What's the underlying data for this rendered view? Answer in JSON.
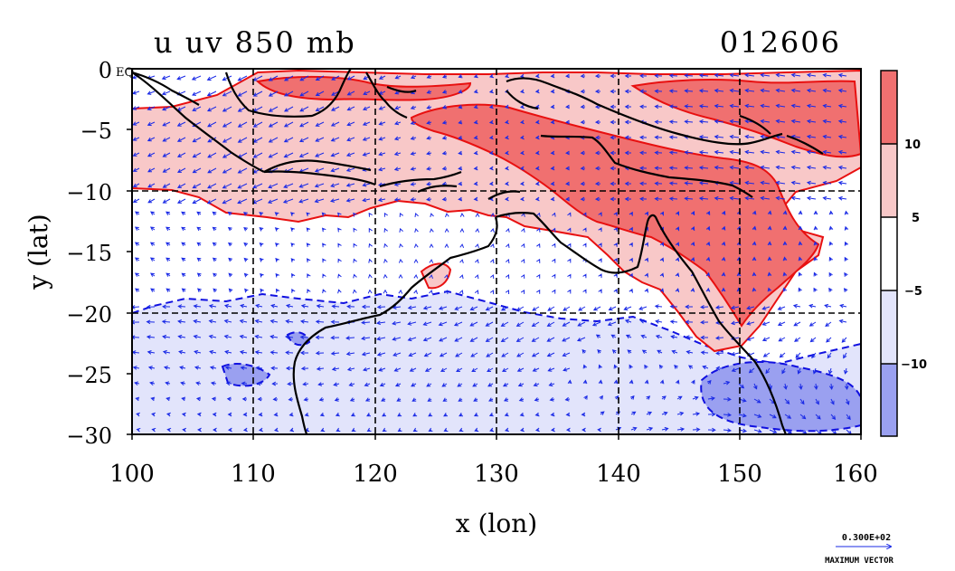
{
  "title": {
    "left": "u uv 850 mb",
    "right": "012606"
  },
  "axes": {
    "xlabel": "x (lon)",
    "ylabel": "y (lat)",
    "x_ticks": [
      "100",
      "110",
      "120",
      "130",
      "140",
      "150",
      "160"
    ],
    "y_ticks": [
      "0",
      "−5",
      "−10",
      "−15",
      "−20",
      "−25",
      "−30"
    ],
    "eq_label": "EQ",
    "xlim": [
      100,
      160
    ],
    "ylim": [
      -30,
      0
    ]
  },
  "colorbar": {
    "labels": [
      "10",
      "5",
      "−5",
      "−10"
    ],
    "colors": [
      "#f07070",
      "#f8c8c8",
      "#ffffff",
      "#e2e4fb",
      "#9aa0f0"
    ]
  },
  "vector_key": {
    "value": "0.300E+02",
    "caption": "MAXIMUM VECTOR"
  },
  "colors": {
    "pos_strong": "#f07070",
    "pos_light": "#f8c8c8",
    "neg_light": "#e2e4fb",
    "neg_strong": "#9aa0f0",
    "contour_pos": "#e81010",
    "contour_neg": "#1010e0",
    "vector": "#1a2ae6",
    "coast": "#000000"
  }
}
